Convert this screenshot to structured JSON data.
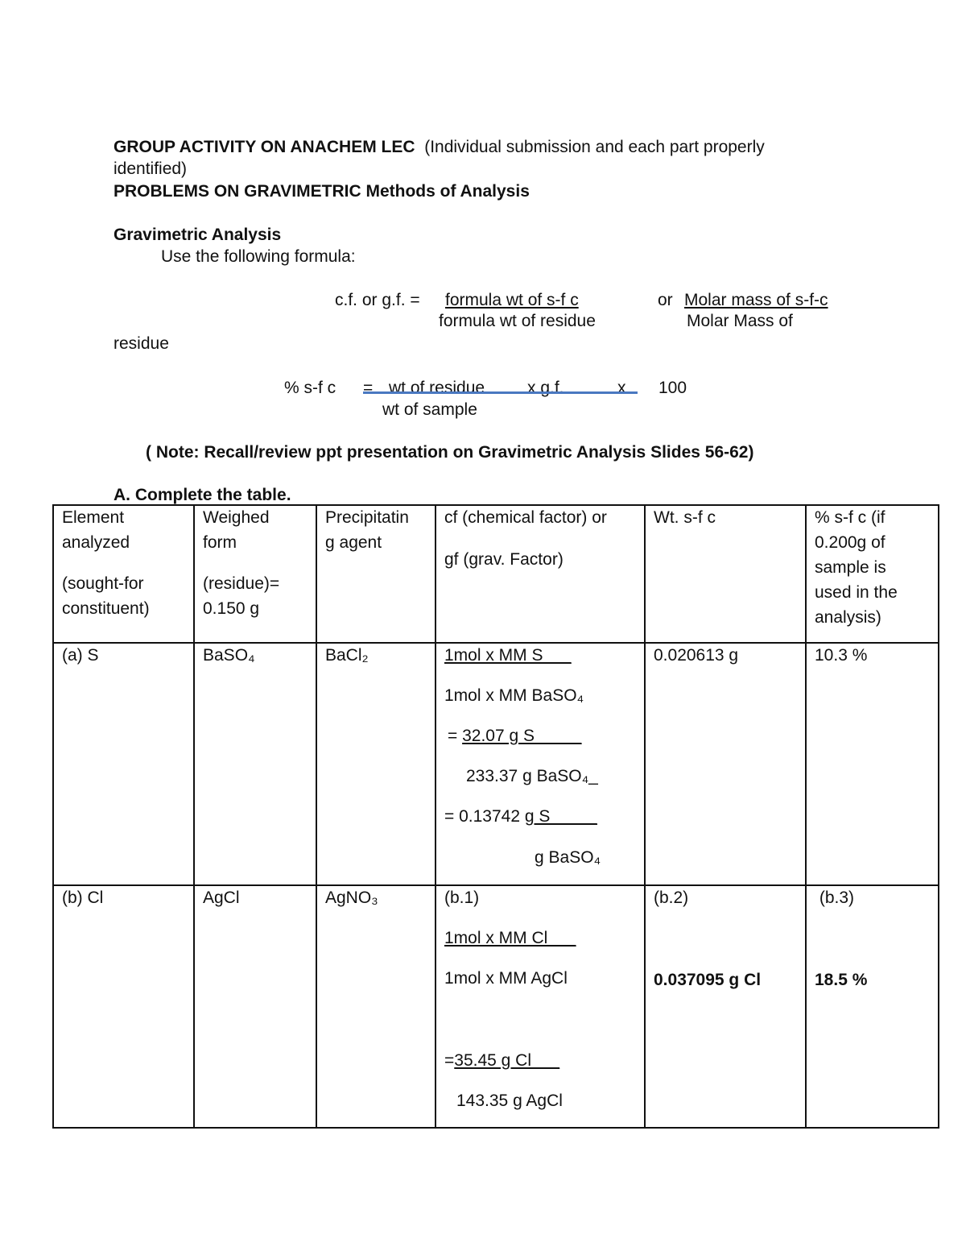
{
  "header": {
    "title_bold": "GROUP ACTIVITY ON ANACHEM LEC",
    "title_note_line1": "(Individual submission and each part properly",
    "title_note_line2": "identified)",
    "subtitle": "PROBLEMS ON GRAVIMETRIC Methods of Analysis"
  },
  "section": {
    "heading": "Gravimetric  Analysis",
    "instruction": "Use the following formula:"
  },
  "formula1": {
    "lhs": "c.f. or g.f.  =",
    "num1": "formula wt of s-f c ",
    "den1": "formula wt of residue",
    "or": "or",
    "num2": " Molar mass of s-f-c",
    "den2": "Molar Mass of",
    "den2_wrap": "residue"
  },
  "formula2": {
    "lhs": "% s-f c",
    "eq": "=",
    "num": "wt of residue",
    "x1": "x  g.f.",
    "x2": "x",
    "hundred": "100",
    "den": "wt of sample",
    "line_color": "#4a78c0"
  },
  "note": "( Note: Recall/review ppt  presentation on Gravimetric Analysis Slides 56-62)",
  "table_title": "A. Complete the table.",
  "table": {
    "headers": [
      [
        "Element",
        "analyzed",
        "(sought-for",
        "constituent)"
      ],
      [
        "Weighed",
        "form",
        "(residue)=",
        "0.150 g"
      ],
      [
        "Precipitatin",
        "g agent"
      ],
      [
        "cf (chemical factor)  or",
        "gf (grav. Factor)"
      ],
      [
        "Wt. s-f c"
      ],
      [
        "% s-f c (if",
        "0.200g of",
        "sample is",
        "used in the",
        "analysis)"
      ]
    ],
    "row_a": {
      "element": "(a)  S",
      "weighed": "BaSO₄",
      "agent": "BaCl₂",
      "cf": [
        "1mol x  MM S___",
        "1mol x  MM BaSO₄",
        "= ",
        "32.07 g S_____",
        "233.37 g BaSO₄_",
        "= 0.13742 ",
        "g S_____",
        "g BaSO₄"
      ],
      "wt": "0.020613 g",
      "pct": "10.3 %"
    },
    "row_b": {
      "element": "(b) Cl",
      "weighed": "AgCl",
      "agent": "AgNO₃",
      "cf": [
        "(b.1)",
        "1mol x  MM Cl___",
        "1mol x  MM AgCl",
        "=",
        "35.45 g Cl___",
        "143.35 g AgCl"
      ],
      "wt_label": "(b.2)",
      "wt": "0.037095 g Cl",
      "pct_label": " (b.3)",
      "pct": "18.5 %"
    }
  }
}
